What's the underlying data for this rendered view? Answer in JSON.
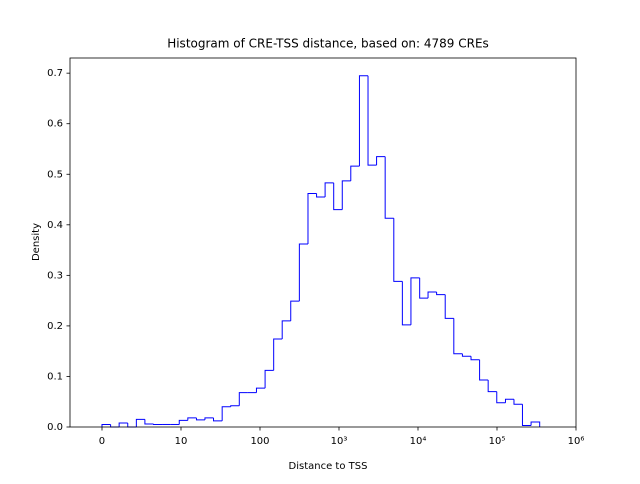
{
  "chart_data": {
    "type": "histogram",
    "title": "Histogram of CRE-TSS distance, based on: 4789 CREs",
    "x_label": "Distance to TSS",
    "y_label": "Density",
    "color": "#0000ff",
    "xscale": "symlog",
    "linthresh": 10,
    "bins": [
      0,
      1.09,
      2.17,
      3.26,
      4.35,
      5.43,
      6.52,
      7.6,
      8.69,
      9.78,
      12.2,
      15.7,
      20.1,
      25.8,
      33.2,
      42.6,
      54.7,
      70.2,
      90.2,
      116,
      149,
      191,
      245,
      315,
      405,
      520,
      667,
      857,
      1100,
      1410,
      1815,
      2330,
      2990,
      3840,
      4940,
      6340,
      8140,
      10500,
      13400,
      17200,
      22100,
      28400,
      36500,
      46900,
      60200,
      77300,
      99300,
      128000,
      164000,
      210000,
      270000,
      347000
    ],
    "counts": [
      0.005,
      0,
      0.008,
      0,
      0.015,
      0.006,
      0.005,
      0.005,
      0.005,
      0.013,
      0.018,
      0.014,
      0.018,
      0.012,
      0.04,
      0.042,
      0.068,
      0.068,
      0.077,
      0.112,
      0.174,
      0.21,
      0.249,
      0.362,
      0.462,
      0.455,
      0.483,
      0.43,
      0.487,
      0.516,
      0.695,
      0.518,
      0.535,
      0.413,
      0.288,
      0.202,
      0.295,
      0.255,
      0.267,
      0.262,
      0.215,
      0.145,
      0.14,
      0.133,
      0.093,
      0.07,
      0.048,
      0.055,
      0.045,
      0.003,
      0.01
    ],
    "xlim": [
      -4.05,
      1000000
    ],
    "xticks": [
      0,
      10,
      100,
      {
        "value": 1000,
        "label": "10³"
      },
      {
        "value": 10000,
        "label": "10⁴"
      },
      {
        "value": 100000,
        "label": "10⁵"
      },
      {
        "value": 1000000,
        "label": "10⁶"
      }
    ],
    "ylim": [
      0,
      0.73
    ],
    "yticks": [
      {
        "value": 0,
        "label": "0.0"
      },
      0.1,
      0.2,
      0.3,
      0.4,
      0.5,
      0.6,
      0.7
    ]
  }
}
